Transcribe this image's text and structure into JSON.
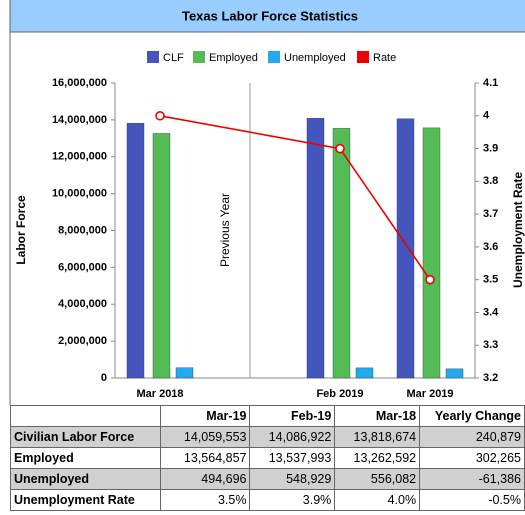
{
  "chart_data": {
    "type": "bar",
    "title": "Texas Labor Force Statistics",
    "y_label": "Labor Force",
    "y2_label": "Unemployment Rate",
    "annotation": "Previous Year",
    "categories": [
      "Mar 2018",
      "Feb 2019",
      "Mar 2019"
    ],
    "series": [
      {
        "name": "CLF",
        "color": "#4455bb",
        "values": [
          13818674,
          14086922,
          14059553
        ]
      },
      {
        "name": "Employed",
        "color": "#55bb55",
        "values": [
          13262592,
          13537993,
          13564857
        ]
      },
      {
        "name": "Unemployed",
        "color": "#22aaee",
        "values": [
          556082,
          548929,
          494696
        ]
      },
      {
        "name": "Rate",
        "color": "#ee0000",
        "type": "line",
        "axis": "y2",
        "values": [
          4.0,
          3.9,
          3.5
        ]
      }
    ],
    "ylim": [
      0,
      16000000
    ],
    "yticks": [
      {
        "value": 0,
        "label": "0"
      },
      {
        "value": 2000000,
        "label": "2,000,000"
      },
      {
        "value": 4000000,
        "label": "4,000,000"
      },
      {
        "value": 6000000,
        "label": "6,000,000"
      },
      {
        "value": 8000000,
        "label": "8,000,000"
      },
      {
        "value": 10000000,
        "label": "10,000,000"
      },
      {
        "value": 12000000,
        "label": "12,000,000"
      },
      {
        "value": 14000000,
        "label": "14,000,000"
      },
      {
        "value": 16000000,
        "label": "16,000,000"
      }
    ],
    "y2lim": [
      3.2,
      4.1
    ],
    "y2ticks": [
      3.2,
      3.3,
      3.4,
      3.5,
      3.6,
      3.7,
      3.8,
      3.9,
      4,
      4.1
    ],
    "legend": "top"
  },
  "table": {
    "header": [
      "",
      "Mar-19",
      "Feb-19",
      "Mar-18",
      "Yearly Change"
    ],
    "rows": [
      [
        "Civilian Labor Force",
        "14,059,553",
        "14,086,922",
        "13,818,674",
        "240,879"
      ],
      [
        "Employed",
        "13,564,857",
        "13,537,993",
        "13,262,592",
        "302,265"
      ],
      [
        "Unemployed",
        "494,696",
        "548,929",
        "556,082",
        "-61,386"
      ],
      [
        "Unemployment Rate",
        "3.5%",
        "3.9%",
        "4.0%",
        "-0.5%"
      ]
    ]
  }
}
